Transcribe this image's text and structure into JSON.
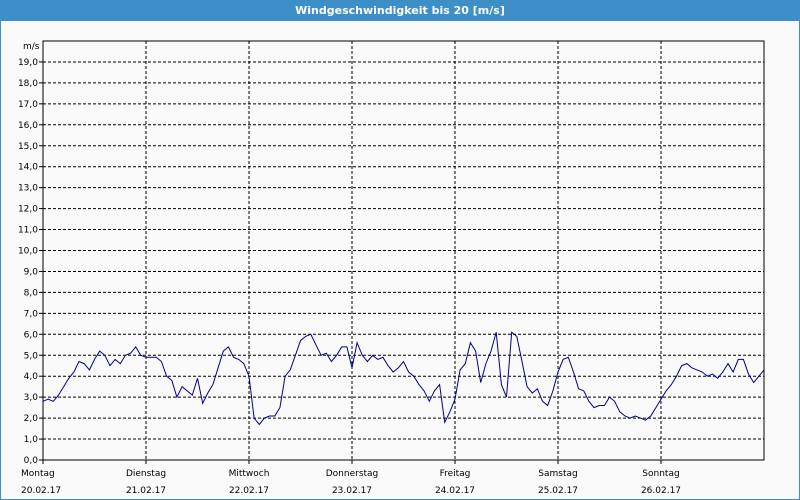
{
  "window": {
    "title": "Windgeschwindigkeit bis 20 [m/s]"
  },
  "colors": {
    "titlebar": "#3e8fc7",
    "series": "#00008b",
    "grid": "#000000"
  },
  "chart_data": {
    "type": "line",
    "title": "Windgeschwindigkeit bis 20 [m/s]",
    "ylabel": "m/s",
    "ylim": [
      0,
      19
    ],
    "yticks": [
      "0,0",
      "1,0",
      "2,0",
      "3,0",
      "4,0",
      "5,0",
      "6,0",
      "7,0",
      "8,0",
      "9,0",
      "10,0",
      "11,0",
      "12,0",
      "13,0",
      "14,0",
      "15,0",
      "16,0",
      "17,0",
      "18,0",
      "19,0"
    ],
    "xlim": [
      0,
      7
    ],
    "day_labels": [
      {
        "day": "Montag",
        "date": "20.02.17"
      },
      {
        "day": "Dienstag",
        "date": "21.02.17"
      },
      {
        "day": "Mittwoch",
        "date": "22.02.17"
      },
      {
        "day": "Donnerstag",
        "date": "23.02.17"
      },
      {
        "day": "Freitag",
        "date": "24.02.17"
      },
      {
        "day": "Samstag",
        "date": "25.02.17"
      },
      {
        "day": "Sonntag",
        "date": "26.02.17"
      }
    ],
    "grid": true,
    "series": [
      {
        "points": [
          [
            0.0,
            2.8
          ],
          [
            0.05,
            2.9
          ],
          [
            0.1,
            2.8
          ],
          [
            0.15,
            3.1
          ],
          [
            0.2,
            3.5
          ],
          [
            0.25,
            3.9
          ],
          [
            0.3,
            4.2
          ],
          [
            0.35,
            4.7
          ],
          [
            0.4,
            4.6
          ],
          [
            0.45,
            4.3
          ],
          [
            0.5,
            4.8
          ],
          [
            0.55,
            5.2
          ],
          [
            0.6,
            5.0
          ],
          [
            0.65,
            4.5
          ],
          [
            0.7,
            4.8
          ],
          [
            0.75,
            4.6
          ],
          [
            0.8,
            5.0
          ],
          [
            0.85,
            5.1
          ],
          [
            0.9,
            5.4
          ],
          [
            0.95,
            5.0
          ],
          [
            1.0,
            4.9
          ],
          [
            1.05,
            4.9
          ],
          [
            1.1,
            4.9
          ],
          [
            1.15,
            4.7
          ],
          [
            1.2,
            4.0
          ],
          [
            1.25,
            3.8
          ],
          [
            1.3,
            3.0
          ],
          [
            1.35,
            3.5
          ],
          [
            1.4,
            3.3
          ],
          [
            1.45,
            3.1
          ],
          [
            1.5,
            3.9
          ],
          [
            1.55,
            2.7
          ],
          [
            1.6,
            3.2
          ],
          [
            1.65,
            3.6
          ],
          [
            1.7,
            4.4
          ],
          [
            1.75,
            5.2
          ],
          [
            1.8,
            5.4
          ],
          [
            1.85,
            4.9
          ],
          [
            1.9,
            4.8
          ],
          [
            1.95,
            4.6
          ],
          [
            2.0,
            4.0
          ],
          [
            2.05,
            2.0
          ],
          [
            2.1,
            1.7
          ],
          [
            2.15,
            2.0
          ],
          [
            2.2,
            2.1
          ],
          [
            2.25,
            2.1
          ],
          [
            2.3,
            2.5
          ],
          [
            2.35,
            4.0
          ],
          [
            2.4,
            4.3
          ],
          [
            2.45,
            5.0
          ],
          [
            2.5,
            5.7
          ],
          [
            2.55,
            5.9
          ],
          [
            2.6,
            6.0
          ],
          [
            2.65,
            5.5
          ],
          [
            2.7,
            5.0
          ],
          [
            2.75,
            5.1
          ],
          [
            2.8,
            4.7
          ],
          [
            2.85,
            5.0
          ],
          [
            2.9,
            5.4
          ],
          [
            2.95,
            5.4
          ],
          [
            3.0,
            4.4
          ],
          [
            3.05,
            5.6
          ],
          [
            3.1,
            5.0
          ],
          [
            3.15,
            4.7
          ],
          [
            3.2,
            5.0
          ],
          [
            3.25,
            4.8
          ],
          [
            3.3,
            4.9
          ],
          [
            3.35,
            4.5
          ],
          [
            3.4,
            4.2
          ],
          [
            3.45,
            4.4
          ],
          [
            3.5,
            4.7
          ],
          [
            3.55,
            4.2
          ],
          [
            3.6,
            4.0
          ],
          [
            3.65,
            3.6
          ],
          [
            3.7,
            3.3
          ],
          [
            3.75,
            2.8
          ],
          [
            3.8,
            3.3
          ],
          [
            3.85,
            3.6
          ],
          [
            3.9,
            1.8
          ],
          [
            3.95,
            2.3
          ],
          [
            4.0,
            2.9
          ],
          [
            4.05,
            4.3
          ],
          [
            4.1,
            4.6
          ],
          [
            4.15,
            5.6
          ],
          [
            4.2,
            5.2
          ],
          [
            4.25,
            3.7
          ],
          [
            4.3,
            4.6
          ],
          [
            4.35,
            5.2
          ],
          [
            4.4,
            6.1
          ],
          [
            4.45,
            3.6
          ],
          [
            4.5,
            3.0
          ],
          [
            4.55,
            6.1
          ],
          [
            4.6,
            5.9
          ],
          [
            4.65,
            4.7
          ],
          [
            4.7,
            3.5
          ],
          [
            4.75,
            3.2
          ],
          [
            4.8,
            3.4
          ],
          [
            4.85,
            2.8
          ],
          [
            4.9,
            2.6
          ],
          [
            4.95,
            3.3
          ],
          [
            5.0,
            4.2
          ],
          [
            5.05,
            4.8
          ],
          [
            5.1,
            4.9
          ],
          [
            5.15,
            4.2
          ],
          [
            5.2,
            3.4
          ],
          [
            5.25,
            3.3
          ],
          [
            5.3,
            2.8
          ],
          [
            5.35,
            2.5
          ],
          [
            5.4,
            2.6
          ],
          [
            5.45,
            2.6
          ],
          [
            5.5,
            3.0
          ],
          [
            5.55,
            2.8
          ],
          [
            5.6,
            2.3
          ],
          [
            5.65,
            2.1
          ],
          [
            5.7,
            2.0
          ],
          [
            5.75,
            2.1
          ],
          [
            5.8,
            2.0
          ],
          [
            5.85,
            1.9
          ],
          [
            5.9,
            2.1
          ],
          [
            5.95,
            2.5
          ],
          [
            6.0,
            2.9
          ],
          [
            6.05,
            3.3
          ],
          [
            6.1,
            3.6
          ],
          [
            6.15,
            4.0
          ],
          [
            6.2,
            4.5
          ],
          [
            6.25,
            4.6
          ],
          [
            6.3,
            4.4
          ],
          [
            6.35,
            4.3
          ],
          [
            6.4,
            4.2
          ],
          [
            6.45,
            4.0
          ],
          [
            6.5,
            4.1
          ],
          [
            6.55,
            3.9
          ],
          [
            6.6,
            4.2
          ],
          [
            6.65,
            4.6
          ],
          [
            6.7,
            4.2
          ],
          [
            6.75,
            4.8
          ],
          [
            6.8,
            4.8
          ],
          [
            6.85,
            4.1
          ],
          [
            6.9,
            3.7
          ],
          [
            6.95,
            4.0
          ],
          [
            7.0,
            4.3
          ]
        ]
      }
    ]
  }
}
